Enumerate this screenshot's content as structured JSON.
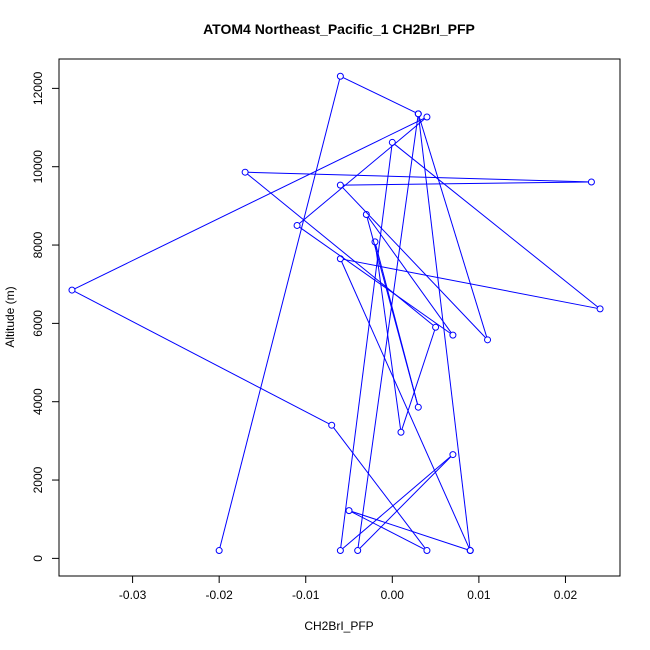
{
  "chart_data": {
    "type": "line",
    "title": "ATOM4 Northeast_Pacific_1 CH2BrI_PFP",
    "xlabel": "CH2BrI_PFP",
    "ylabel": "Altitude (m)",
    "xlim": [
      -0.0385,
      0.0263
    ],
    "ylim": [
      -450,
      12750
    ],
    "xticks": [
      -0.03,
      -0.02,
      -0.01,
      0.0,
      0.01,
      0.02
    ],
    "xtick_labels": [
      "-0.03",
      "-0.02",
      "-0.01",
      "0.00",
      "0.01",
      "0.02"
    ],
    "yticks": [
      0,
      2000,
      4000,
      6000,
      8000,
      10000,
      12000
    ],
    "ytick_labels": [
      "0",
      "2000",
      "4000",
      "6000",
      "8000",
      "10000",
      "12000"
    ],
    "grid": false,
    "series": [
      {
        "color": "#0000ff",
        "marker": "open-circle",
        "x": [
          0.009,
          -0.005,
          0.004,
          -0.007,
          -0.037,
          0.004,
          -0.011,
          0.007,
          -0.003,
          0.003,
          -0.002,
          0.001,
          0.005,
          -0.017,
          0.023,
          -0.006,
          0.011,
          0.003,
          0.009,
          -0.006,
          0.024,
          0.0,
          -0.006,
          0.007,
          -0.004,
          0.003,
          -0.006,
          -0.02
        ],
        "y": [
          200,
          1220,
          200,
          3400,
          6850,
          11270,
          8500,
          5700,
          8780,
          3860,
          8080,
          3220,
          5900,
          9860,
          9610,
          9530,
          5580,
          11350,
          200,
          7650,
          6370,
          10620,
          200,
          2650,
          200,
          11350,
          12310,
          200
        ]
      }
    ]
  }
}
